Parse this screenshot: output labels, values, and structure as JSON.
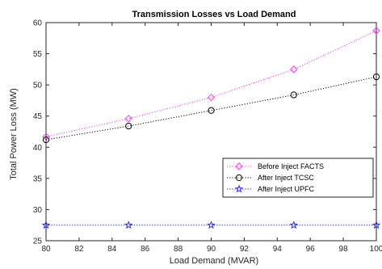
{
  "chart_data": {
    "type": "line",
    "title": "Transmission Losses vs Load Demand",
    "xlabel": "Load Demand (MVAR)",
    "ylabel": "Total Power Loss (MW)",
    "xlim": [
      80,
      100
    ],
    "ylim": [
      25,
      60
    ],
    "xticks": [
      80,
      82,
      84,
      86,
      88,
      90,
      92,
      94,
      96,
      98,
      100
    ],
    "yticks": [
      25,
      30,
      35,
      40,
      45,
      50,
      55,
      60
    ],
    "grid": false,
    "legend_position": "right",
    "x": [
      80,
      85,
      90,
      95,
      100
    ],
    "series": [
      {
        "name": "Before Inject FACTS",
        "values": [
          41.7,
          44.6,
          48.0,
          52.5,
          58.7
        ],
        "color": "#ff33ff",
        "marker": "diamond",
        "line": "dotted"
      },
      {
        "name": "After Inject TCSC",
        "values": [
          41.2,
          43.4,
          45.9,
          48.4,
          51.3
        ],
        "color": "#000000",
        "marker": "circle",
        "line": "dotted"
      },
      {
        "name": "After Inject UPFC",
        "values": [
          27.5,
          27.5,
          27.5,
          27.5,
          27.5
        ],
        "color": "#1a1aff",
        "marker": "star",
        "line": "dotted"
      }
    ]
  }
}
